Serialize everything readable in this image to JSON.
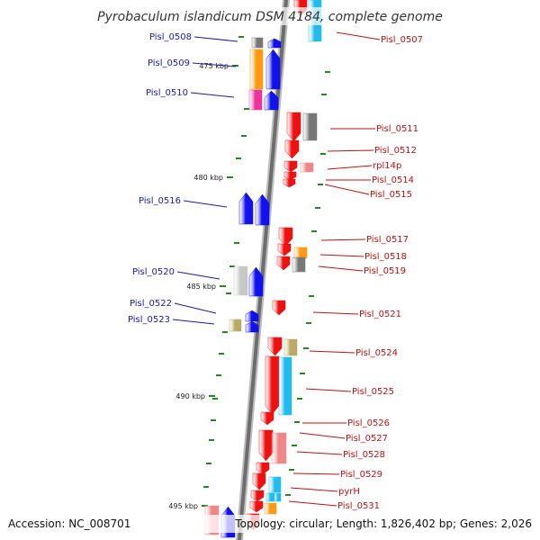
{
  "title": "Pyrobaculum islandicum DSM 4184, complete genome",
  "accession": "Accession: NC_008701",
  "topology": "Topology: circular; Length: 1,826,402 bp; Genes: 2,026",
  "colors": {
    "red": "#ee1111",
    "blue": "#1111ee",
    "orange": "#ff9911",
    "gray": "#777777",
    "lightgray": "#c8c8c8",
    "magenta": "#ee3399",
    "cyan": "#22bbee",
    "pink": "#ee8888",
    "khaki": "#bbaa66",
    "leftLabel": "#1a1aaa",
    "rightLabel": "#bb1111",
    "tick": "#228822"
  },
  "kbp_ticks": [
    {
      "label": "475 kbp"
    },
    {
      "label": "480 kbp"
    },
    {
      "label": "485 kbp"
    },
    {
      "label": "490 kbp"
    },
    {
      "label": "495 kbp"
    }
  ],
  "left_genes": [
    "Pisl_0508",
    "Pisl_0509",
    "Pisl_0510",
    "Pisl_0516",
    "Pisl_0520",
    "Pisl_0522",
    "Pisl_0523"
  ],
  "right_genes": [
    "Pisl_0507",
    "Pisl_0511",
    "Pisl_0512",
    "rpl14p",
    "Pisl_0514",
    "Pisl_0515",
    "Pisl_0517",
    "Pisl_0518",
    "Pisl_0519",
    "Pisl_0521",
    "Pisl_0524",
    "Pisl_0525",
    "Pisl_0526",
    "Pisl_0527",
    "Pisl_0528",
    "Pisl_0529",
    "pyrH",
    "Pisl_0531"
  ]
}
